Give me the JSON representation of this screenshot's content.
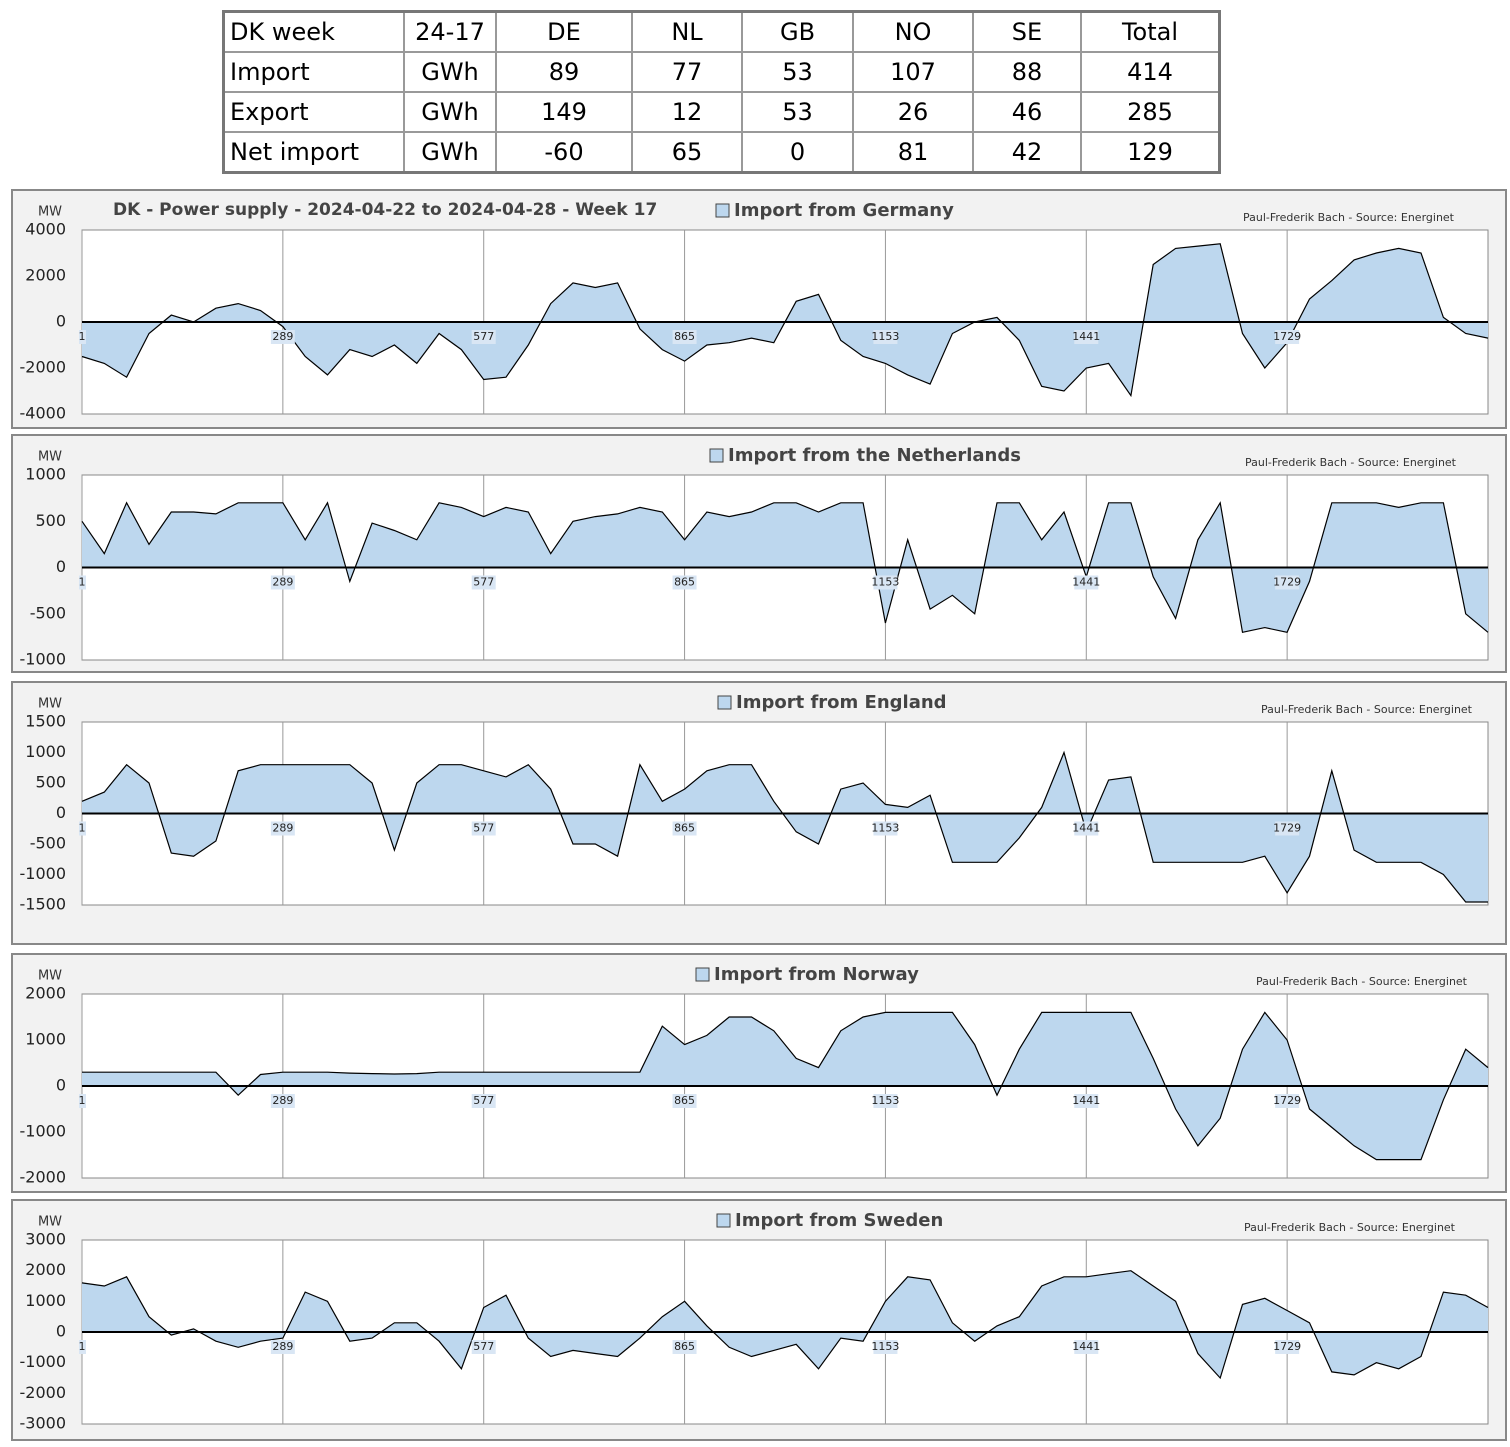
{
  "table": {
    "header": [
      "DK week",
      "24-17",
      "DE",
      "NL",
      "GB",
      "NO",
      "SE",
      "Total"
    ],
    "rows": [
      [
        "Import",
        "GWh",
        89,
        77,
        53,
        107,
        88,
        414
      ],
      [
        "Export",
        "GWh",
        149,
        12,
        53,
        26,
        46,
        285
      ],
      [
        "Net import",
        "GWh",
        -60,
        65,
        0,
        81,
        42,
        129
      ]
    ]
  },
  "chart_data": [
    {
      "type": "area",
      "title": "DK - Power supply - 2024-04-22 to 2024-04-28 - Week 17",
      "y_label": "MW",
      "source": "Paul-Frederik Bach - Source: Energinet",
      "x_grid": true,
      "x": [
        1,
        33,
        65,
        97,
        129,
        161,
        193,
        225,
        257,
        289,
        321,
        353,
        385,
        417,
        449,
        481,
        513,
        545,
        577,
        609,
        641,
        673,
        705,
        737,
        769,
        801,
        833,
        865,
        897,
        929,
        961,
        993,
        1025,
        1057,
        1089,
        1121,
        1153,
        1185,
        1217,
        1249,
        1281,
        1313,
        1345,
        1377,
        1409,
        1441,
        1473,
        1505,
        1537,
        1569,
        1601,
        1633,
        1665,
        1697,
        1729,
        1761,
        1793,
        1825,
        1857,
        1889,
        1921,
        1953,
        1985,
        2017
      ],
      "xlim": [
        1,
        2017
      ],
      "xticks": [
        1,
        289,
        577,
        865,
        1153,
        1441,
        1729
      ],
      "ylim": [
        -4000,
        4000
      ],
      "yticks": [
        -4000,
        -2000,
        0,
        2000,
        4000
      ],
      "series": [
        {
          "name": "Import from Germany",
          "color": "#bdd7ee",
          "values": [
            -1500,
            -1800,
            -2400,
            -500,
            300,
            0,
            600,
            800,
            500,
            -200,
            -1500,
            -2300,
            -1200,
            -1500,
            -1000,
            -1800,
            -500,
            -1200,
            -2500,
            -2400,
            -1000,
            800,
            1700,
            1500,
            1700,
            -300,
            -1200,
            -1700,
            -1000,
            -900,
            -700,
            -900,
            900,
            1200,
            -800,
            -1500,
            -1800,
            -2300,
            -2700,
            -500,
            0,
            200,
            -800,
            -2800,
            -3000,
            -2000,
            -1800,
            -3200,
            2500,
            3200,
            3300,
            3400,
            -500,
            -2000,
            -900,
            1000,
            1800,
            2700,
            3000,
            3200,
            3000,
            200,
            -500,
            -700
          ]
        }
      ]
    },
    {
      "type": "area",
      "y_label": "MW",
      "source": "Paul-Frederik Bach - Source: Energinet",
      "x_grid": true,
      "x": [
        1,
        33,
        65,
        97,
        129,
        161,
        193,
        225,
        257,
        289,
        321,
        353,
        385,
        417,
        449,
        481,
        513,
        545,
        577,
        609,
        641,
        673,
        705,
        737,
        769,
        801,
        833,
        865,
        897,
        929,
        961,
        993,
        1025,
        1057,
        1089,
        1121,
        1153,
        1185,
        1217,
        1249,
        1281,
        1313,
        1345,
        1377,
        1409,
        1441,
        1473,
        1505,
        1537,
        1569,
        1601,
        1633,
        1665,
        1697,
        1729,
        1761,
        1793,
        1825,
        1857,
        1889,
        1921,
        1953,
        1985,
        2017
      ],
      "xlim": [
        1,
        2017
      ],
      "xticks": [
        1,
        289,
        577,
        865,
        1153,
        1441,
        1729
      ],
      "ylim": [
        -1000,
        1000
      ],
      "yticks": [
        -1000,
        -500,
        0,
        500,
        1000
      ],
      "series": [
        {
          "name": "Import from the Netherlands",
          "color": "#bdd7ee",
          "values": [
            500,
            150,
            700,
            250,
            600,
            600,
            580,
            700,
            700,
            700,
            300,
            700,
            -150,
            480,
            400,
            300,
            700,
            650,
            550,
            650,
            600,
            150,
            500,
            550,
            580,
            650,
            600,
            300,
            600,
            550,
            600,
            700,
            700,
            600,
            700,
            700,
            -600,
            300,
            -450,
            -300,
            -500,
            700,
            700,
            300,
            600,
            -100,
            700,
            700,
            -100,
            -550,
            300,
            700,
            -700,
            -650,
            -700,
            -150,
            700,
            700,
            700,
            650,
            700,
            700,
            -500,
            -700
          ]
        }
      ]
    },
    {
      "type": "area",
      "y_label": "MW",
      "source": "Paul-Frederik Bach - Source: Energinet",
      "x_grid": true,
      "x": [
        1,
        33,
        65,
        97,
        129,
        161,
        193,
        225,
        257,
        289,
        321,
        353,
        385,
        417,
        449,
        481,
        513,
        545,
        577,
        609,
        641,
        673,
        705,
        737,
        769,
        801,
        833,
        865,
        897,
        929,
        961,
        993,
        1025,
        1057,
        1089,
        1121,
        1153,
        1185,
        1217,
        1249,
        1281,
        1313,
        1345,
        1377,
        1409,
        1441,
        1473,
        1505,
        1537,
        1569,
        1601,
        1633,
        1665,
        1697,
        1729,
        1761,
        1793,
        1825,
        1857,
        1889,
        1921,
        1953,
        1985,
        2017
      ],
      "xlim": [
        1,
        2017
      ],
      "xticks": [
        1,
        289,
        577,
        865,
        1153,
        1441,
        1729
      ],
      "ylim": [
        -1500,
        1500
      ],
      "yticks": [
        -1500,
        -1000,
        -500,
        0,
        500,
        1000,
        1500
      ],
      "series": [
        {
          "name": "Import from England",
          "color": "#bdd7ee",
          "values": [
            200,
            350,
            800,
            500,
            -650,
            -700,
            -450,
            700,
            800,
            800,
            800,
            800,
            800,
            500,
            -600,
            500,
            800,
            800,
            700,
            600,
            800,
            400,
            -500,
            -500,
            -700,
            800,
            200,
            400,
            700,
            800,
            800,
            200,
            -300,
            -500,
            400,
            500,
            150,
            100,
            300,
            -800,
            -800,
            -800,
            -400,
            100,
            1000,
            -300,
            550,
            600,
            -800,
            -800,
            -800,
            -800,
            -800,
            -700,
            -1300,
            -700,
            700,
            -600,
            -800,
            -800,
            -800,
            -1000,
            -1450,
            -1450
          ]
        }
      ]
    },
    {
      "type": "area",
      "y_label": "MW",
      "source": "Paul-Frederik Bach - Source: Energinet",
      "x_grid": true,
      "x": [
        1,
        33,
        65,
        97,
        129,
        161,
        193,
        225,
        257,
        289,
        321,
        353,
        385,
        417,
        449,
        481,
        513,
        545,
        577,
        609,
        641,
        673,
        705,
        737,
        769,
        801,
        833,
        865,
        897,
        929,
        961,
        993,
        1025,
        1057,
        1089,
        1121,
        1153,
        1185,
        1217,
        1249,
        1281,
        1313,
        1345,
        1377,
        1409,
        1441,
        1473,
        1505,
        1537,
        1569,
        1601,
        1633,
        1665,
        1697,
        1729,
        1761,
        1793,
        1825,
        1857,
        1889,
        1921,
        1953,
        1985,
        2017
      ],
      "xlim": [
        1,
        2017
      ],
      "xticks": [
        1,
        289,
        577,
        865,
        1153,
        1441,
        1729
      ],
      "ylim": [
        -2000,
        2000
      ],
      "yticks": [
        -2000,
        -1000,
        0,
        1000,
        2000
      ],
      "series": [
        {
          "name": "Import from Norway",
          "color": "#bdd7ee",
          "values": [
            300,
            300,
            300,
            300,
            300,
            300,
            300,
            -200,
            250,
            300,
            300,
            300,
            280,
            270,
            260,
            270,
            300,
            300,
            300,
            300,
            300,
            300,
            300,
            300,
            300,
            300,
            1300,
            900,
            1100,
            1500,
            1500,
            1200,
            600,
            400,
            1200,
            1500,
            1600,
            1600,
            1600,
            1600,
            900,
            -200,
            800,
            1600,
            1600,
            1600,
            1600,
            1600,
            600,
            -500,
            -1300,
            -700,
            800,
            1600,
            1000,
            -500,
            -900,
            -1300,
            -1600,
            -1600,
            -1600,
            -300,
            800,
            400
          ]
        }
      ]
    },
    {
      "type": "area",
      "y_label": "MW",
      "source": "Paul-Frederik Bach - Source: Energinet",
      "x_grid": true,
      "x": [
        1,
        33,
        65,
        97,
        129,
        161,
        193,
        225,
        257,
        289,
        321,
        353,
        385,
        417,
        449,
        481,
        513,
        545,
        577,
        609,
        641,
        673,
        705,
        737,
        769,
        801,
        833,
        865,
        897,
        929,
        961,
        993,
        1025,
        1057,
        1089,
        1121,
        1153,
        1185,
        1217,
        1249,
        1281,
        1313,
        1345,
        1377,
        1409,
        1441,
        1473,
        1505,
        1537,
        1569,
        1601,
        1633,
        1665,
        1697,
        1729,
        1761,
        1793,
        1825,
        1857,
        1889,
        1921,
        1953,
        1985,
        2017
      ],
      "xlim": [
        1,
        2017
      ],
      "xticks": [
        1,
        289,
        577,
        865,
        1153,
        1441,
        1729
      ],
      "ylim": [
        -3000,
        3000
      ],
      "yticks": [
        -3000,
        -2000,
        -1000,
        0,
        1000,
        2000,
        3000
      ],
      "series": [
        {
          "name": "Import from Sweden",
          "color": "#bdd7ee",
          "values": [
            1600,
            1500,
            1800,
            500,
            -100,
            100,
            -300,
            -500,
            -300,
            -200,
            1300,
            1000,
            -300,
            -200,
            300,
            300,
            -300,
            -1200,
            800,
            1200,
            -200,
            -800,
            -600,
            -700,
            -800,
            -200,
            500,
            1000,
            200,
            -500,
            -800,
            -600,
            -400,
            -1200,
            -200,
            -300,
            1000,
            1800,
            1700,
            300,
            -300,
            200,
            500,
            1500,
            1800,
            1800,
            1900,
            2000,
            1500,
            1000,
            -700,
            -1500,
            900,
            1100,
            700,
            300,
            -1300,
            -1400,
            -1000,
            -1200,
            -800,
            1300,
            1200,
            800
          ]
        }
      ]
    }
  ]
}
